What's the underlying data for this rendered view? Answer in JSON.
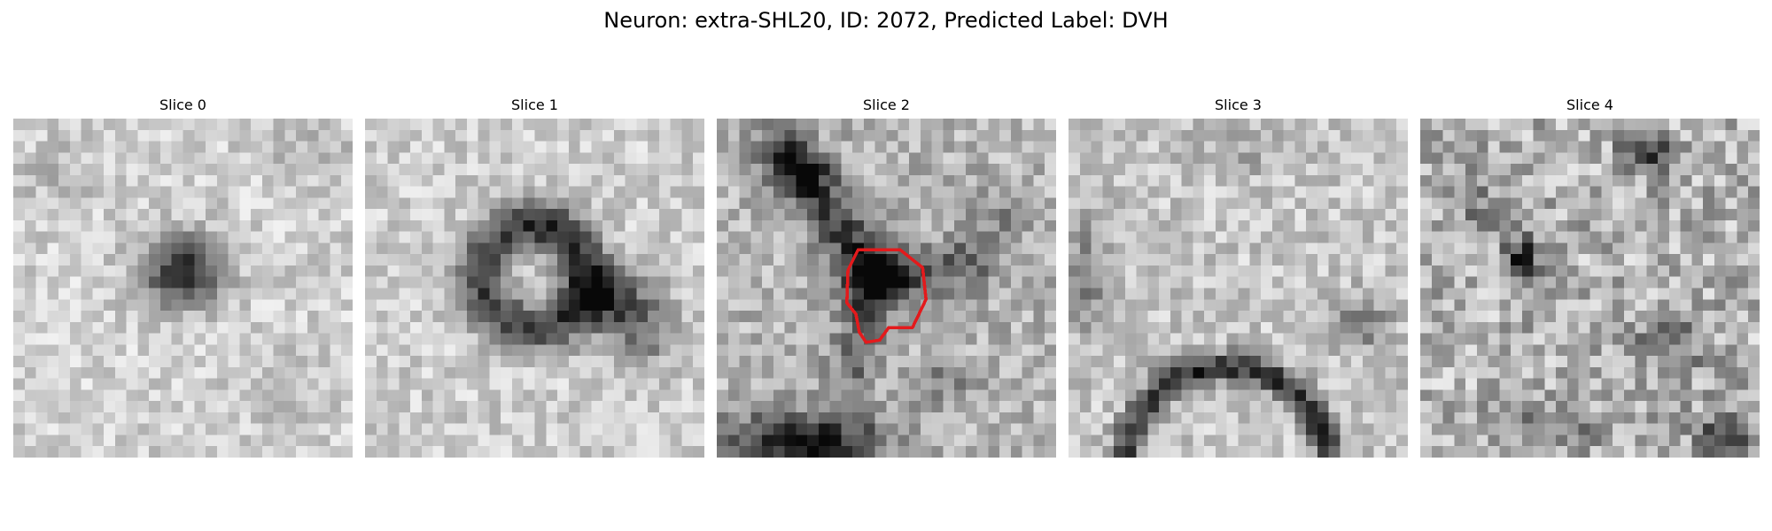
{
  "figure": {
    "suptitle": "Neuron: extra-SHL20, ID: 2072, Predicted Label: DVH"
  },
  "slices": [
    {
      "title": "Slice 0",
      "description": "dark roughly round blob centered"
    },
    {
      "title": "Slice 1",
      "description": "dark ring with lighter interior plus dark tail to the right"
    },
    {
      "title": "Slice 2",
      "description": "dark cross-shaped structure with red contour outline in center"
    },
    {
      "title": "Slice 3",
      "description": "mostly light texture, dark arc along bottom"
    },
    {
      "title": "Slice 4",
      "description": "noisy texture with dark spots at top and left"
    }
  ],
  "overlay": {
    "contour_color": "#e31a1c",
    "contour_slice": "Slice 2"
  },
  "colormap": "gray"
}
